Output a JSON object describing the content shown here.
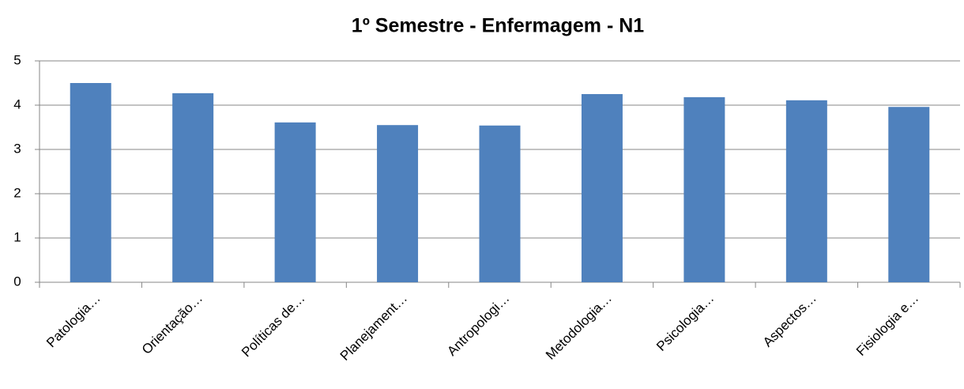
{
  "chart_data": {
    "type": "bar",
    "title": "1º Semestre - Enfermagem - N1",
    "categories": [
      "Patologia…",
      "Orientação…",
      "Políticas de…",
      "Planejament…",
      "Antropologi…",
      "Metodologia…",
      "Psicologia…",
      "Aspectos…",
      "Fisiologia e…"
    ],
    "values": [
      4.5,
      4.27,
      3.61,
      3.55,
      3.54,
      4.25,
      4.18,
      4.11,
      3.96
    ],
    "color": "#4f81bd",
    "ylim": [
      0,
      5
    ],
    "yticks": [
      0,
      1,
      2,
      3,
      4,
      5
    ],
    "grid": true
  }
}
